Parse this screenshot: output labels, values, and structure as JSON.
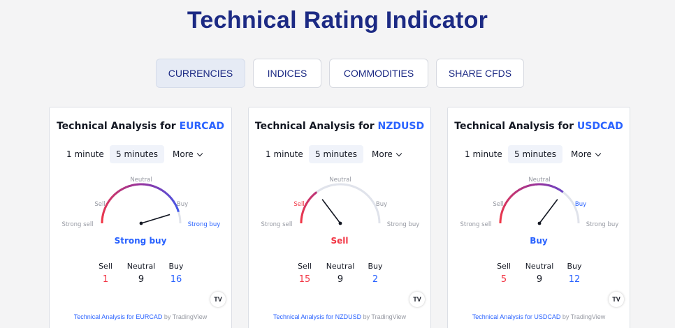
{
  "page": {
    "title": "Technical Rating Indicator"
  },
  "tabs": [
    {
      "label": "CURRENCIES",
      "active": true
    },
    {
      "label": "INDICES",
      "active": false
    },
    {
      "label": "COMMODITIES",
      "active": false
    },
    {
      "label": "SHARE CFDS",
      "active": false
    }
  ],
  "colors": {
    "sell": "#f23645",
    "buy": "#2962ff",
    "neutral": "#131722",
    "title": "#1c2a84",
    "track": "#e0e3eb"
  },
  "widgets": [
    {
      "title_prefix": "Technical Analysis for",
      "symbol": "EURCAD",
      "intervals": [
        "1 minute",
        "5 minutes",
        "More"
      ],
      "selected_interval": "5 minutes",
      "gauge_labels": {
        "strong_sell": "Strong sell",
        "sell": "Sell",
        "neutral": "Neutral",
        "buy": "Buy",
        "strong_buy": "Strong buy"
      },
      "verdict": "Strong buy",
      "verdict_color": "#2962ff",
      "active_label": "strong_buy",
      "needle_angle_deg": 163,
      "count_labels": {
        "sell": "Sell",
        "neutral": "Neutral",
        "buy": "Buy"
      },
      "counts": {
        "sell": "1",
        "neutral": "9",
        "buy": "16"
      },
      "footer_link": "Technical Analysis for EURCAD",
      "footer_by": "by TradingView",
      "logo": "TV"
    },
    {
      "title_prefix": "Technical Analysis for",
      "symbol": "NZDUSD",
      "intervals": [
        "1 minute",
        "5 minutes",
        "More"
      ],
      "selected_interval": "5 minutes",
      "gauge_labels": {
        "strong_sell": "Strong sell",
        "sell": "Sell",
        "neutral": "Neutral",
        "buy": "Buy",
        "strong_buy": "Strong buy"
      },
      "verdict": "Sell",
      "verdict_color": "#f23645",
      "active_label": "sell",
      "needle_angle_deg": 53,
      "count_labels": {
        "sell": "Sell",
        "neutral": "Neutral",
        "buy": "Buy"
      },
      "counts": {
        "sell": "15",
        "neutral": "9",
        "buy": "2"
      },
      "footer_link": "Technical Analysis for NZDUSD",
      "footer_by": "by TradingView",
      "logo": "TV"
    },
    {
      "title_prefix": "Technical Analysis for",
      "symbol": "USDCAD",
      "intervals": [
        "1 minute",
        "5 minutes",
        "More"
      ],
      "selected_interval": "5 minutes",
      "gauge_labels": {
        "strong_sell": "Strong sell",
        "sell": "Sell",
        "neutral": "Neutral",
        "buy": "Buy",
        "strong_buy": "Strong buy"
      },
      "verdict": "Buy",
      "verdict_color": "#2962ff",
      "active_label": "buy",
      "needle_angle_deg": 127,
      "count_labels": {
        "sell": "Sell",
        "neutral": "Neutral",
        "buy": "Buy"
      },
      "counts": {
        "sell": "5",
        "neutral": "9",
        "buy": "12"
      },
      "footer_link": "Technical Analysis for USDCAD",
      "footer_by": "by TradingView",
      "logo": "TV"
    }
  ]
}
